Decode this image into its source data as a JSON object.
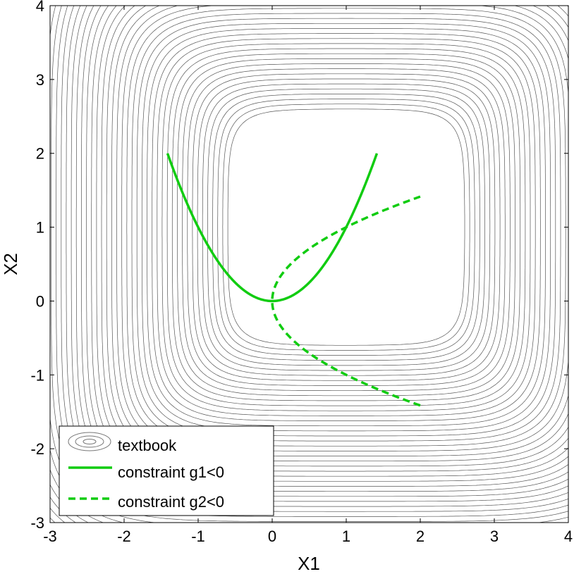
{
  "chart_data": {
    "type": "contour",
    "title": "",
    "xlabel": "X1",
    "ylabel": "X2",
    "xlim": [
      -3,
      4
    ],
    "ylim": [
      -3,
      4
    ],
    "xticks": [
      "-3",
      "-2",
      "-1",
      "0",
      "1",
      "2",
      "3",
      "4"
    ],
    "yticks": [
      "-3",
      "-2",
      "-1",
      "0",
      "1",
      "2",
      "3",
      "4"
    ],
    "grid": false,
    "legend_position": "bottom-left",
    "contour_center": [
      1,
      1
    ],
    "series": [
      {
        "name": "textbook",
        "kind": "contour",
        "color": "#555555"
      },
      {
        "name": "constraint g1<0",
        "kind": "curve",
        "style": "solid",
        "color": "#11cc11",
        "equation": "x2 = x1^2",
        "x_range": [
          -1.414,
          1.414
        ]
      },
      {
        "name": "constraint g2<0",
        "kind": "curve",
        "style": "dashed",
        "color": "#11cc11",
        "equation": "x1 = x2^2",
        "y_range": [
          -1.414,
          1.414
        ]
      }
    ]
  }
}
